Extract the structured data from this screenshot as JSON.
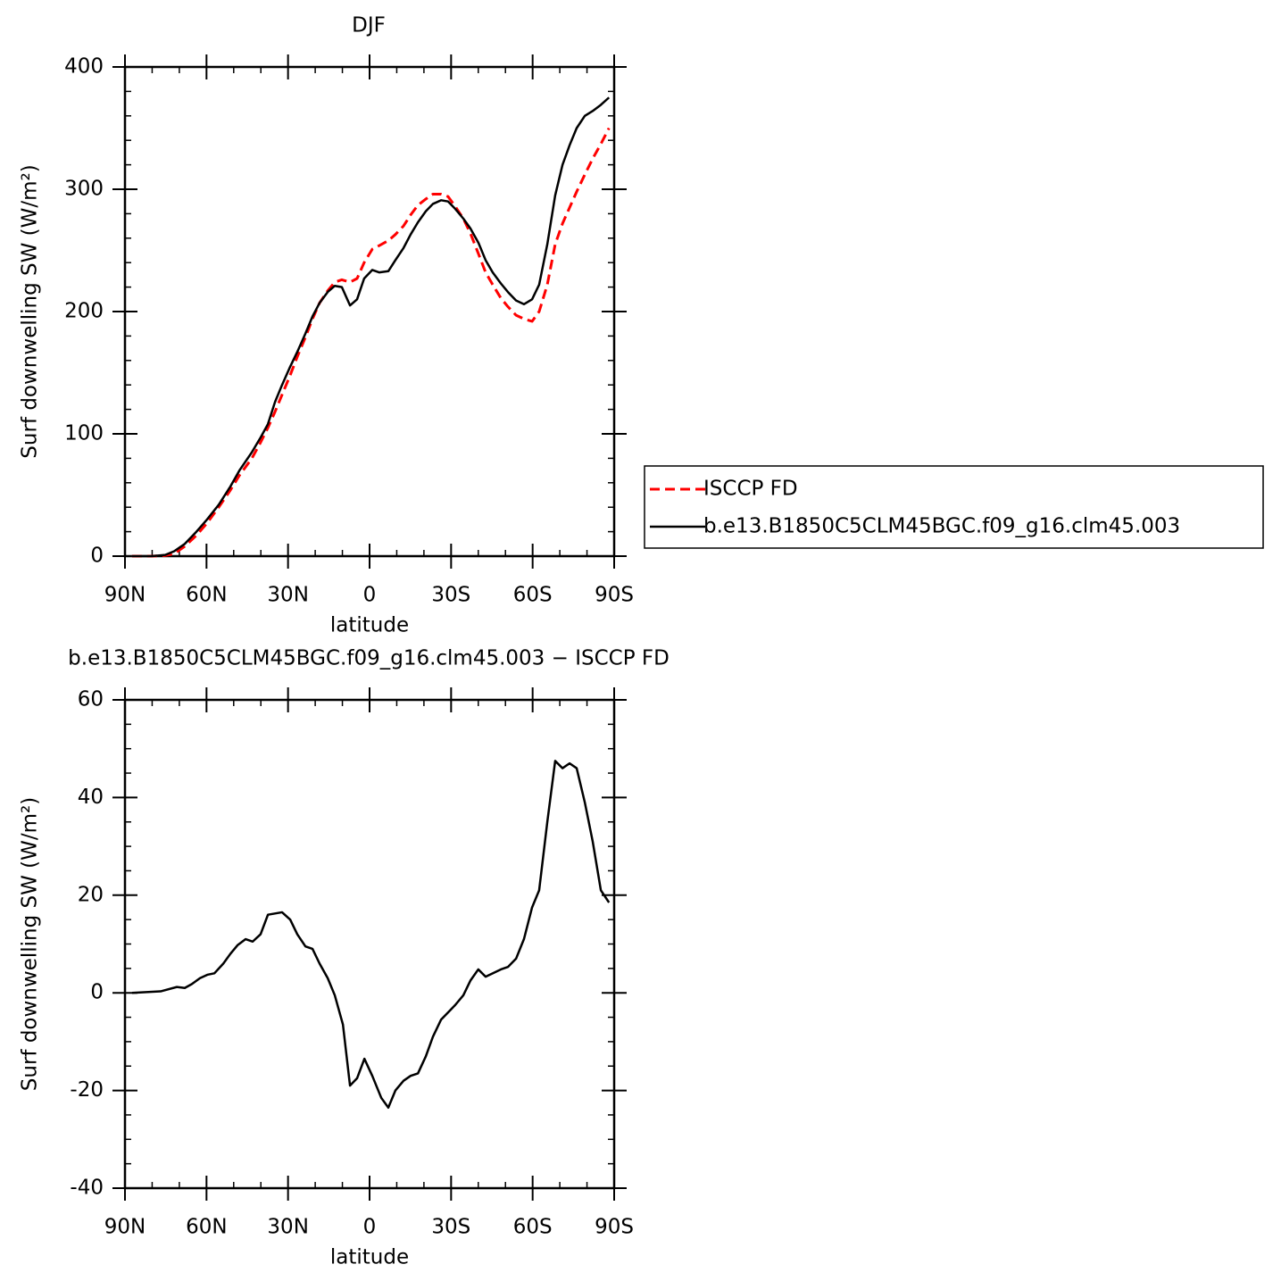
{
  "chart_data": [
    {
      "type": "line",
      "title": "DJF",
      "xlabel": "latitude",
      "ylabel": "Surf downwelling SW (W/m²)",
      "x": [
        -87.4,
        -80.1,
        -75.2,
        -71.9,
        -68,
        -63.7,
        -59.8,
        -55.5,
        -51.2,
        -47.9,
        -43.3,
        -40.1,
        -37.4,
        -34.8,
        -32.2,
        -29.2,
        -26.6,
        -23.6,
        -21,
        -18.4,
        -15.4,
        -12.8,
        -10.2,
        -7.2,
        -4.6,
        -2,
        1,
        3.6,
        6.9,
        9.5,
        12.5,
        15.1,
        17.8,
        20.7,
        23.3,
        26.3,
        28.9,
        31.5,
        34.5,
        37.1,
        40.1,
        42.7,
        45.3,
        48.3,
        50.9,
        53.9,
        56.8,
        59.8,
        62.4,
        65.4,
        68.3,
        71,
        73.6,
        76.2,
        79.2,
        82.1,
        85.1,
        88.1
      ],
      "series": [
        {
          "name": "ISCCP FD",
          "color": "#ff0000",
          "dash": true,
          "values": [
            0,
            0,
            0.5,
            2,
            8,
            17,
            27,
            40,
            54,
            66,
            80,
            93,
            105,
            118,
            132,
            148,
            163,
            179,
            194,
            207,
            217,
            224,
            226,
            224,
            227,
            240,
            251,
            254,
            258,
            263,
            270,
            279,
            287,
            292,
            296,
            296,
            294,
            286,
            276,
            264,
            247,
            232,
            222,
            211,
            204,
            197,
            194,
            192,
            200,
            222,
            255,
            272,
            285,
            298,
            312,
            325,
            337,
            350
          ]
        },
        {
          "name": "b.e13.B1850C5CLM45BGC.f09_g16.clm45.003",
          "color": "#000000",
          "dash": false,
          "values": [
            0,
            0,
            1,
            4,
            10,
            20,
            30,
            42,
            57,
            70,
            85,
            97,
            108,
            126,
            140,
            155,
            167,
            182,
            196,
            207,
            216,
            221,
            220,
            205,
            210,
            227,
            234,
            232,
            233,
            242,
            252,
            263,
            273,
            282,
            288,
            291,
            290,
            284,
            276,
            268,
            256,
            242,
            232,
            223,
            216,
            209,
            206,
            210,
            222,
            255,
            295,
            320,
            336,
            350,
            360,
            364,
            369,
            375
          ]
        }
      ],
      "xlim": [
        -90,
        90
      ],
      "xticks": [
        {
          "value": -90,
          "label": "90N"
        },
        {
          "value": -60,
          "label": "60N"
        },
        {
          "value": -30,
          "label": "30N"
        },
        0,
        {
          "value": 30,
          "label": "30S"
        },
        {
          "value": 60,
          "label": "60S"
        },
        {
          "value": 90,
          "label": "90S"
        }
      ],
      "ylim": [
        0,
        400
      ],
      "yticks": [
        0,
        100,
        200,
        300,
        400
      ],
      "legend": "right"
    },
    {
      "type": "line",
      "title": "b.e13.B1850C5CLM45BGC.f09_g16.clm45.003 − ISCCP FD",
      "xlabel": "latitude",
      "ylabel": "Surf downwelling SW (W/m²)",
      "x": [
        -87.4,
        -76.9,
        -70.9,
        -68,
        -65.4,
        -62.4,
        -59.7,
        -57.1,
        -53.8,
        -51.2,
        -48.5,
        -45.6,
        -43,
        -40.1,
        -37.4,
        -32.2,
        -29.2,
        -26.6,
        -23.6,
        -21,
        -18.4,
        -15.4,
        -12.8,
        -9.8,
        -7.2,
        -4.6,
        -1.9,
        1,
        4.3,
        6.9,
        9.5,
        12.5,
        15.1,
        17.8,
        20.7,
        23.3,
        26.3,
        28.9,
        31.5,
        34.5,
        37.1,
        40,
        42.7,
        45.3,
        48.3,
        50.9,
        53.9,
        56.8,
        59.8,
        62.4,
        65.4,
        68.3,
        71,
        73.6,
        76.2,
        79.2,
        82.1,
        85.1,
        88.1
      ],
      "values": [
        0,
        0.3,
        1.2,
        1,
        1.8,
        3,
        3.7,
        4,
        6,
        8,
        9.8,
        11,
        10.5,
        12,
        16,
        16.5,
        15,
        12,
        9.5,
        9,
        6,
        3,
        -0.5,
        -6.5,
        -19,
        -17.5,
        -13.5,
        -17,
        -21.5,
        -23.5,
        -20,
        -18,
        -17,
        -16.5,
        -13,
        -9,
        -5.5,
        -4,
        -2.5,
        -0.5,
        2.5,
        4.8,
        3.3,
        4,
        4.8,
        5.3,
        7,
        11,
        17.5,
        21,
        35,
        47.5,
        46,
        47,
        46,
        39,
        31,
        21,
        18.5
      ],
      "color": "#000000",
      "xlim": [
        -90,
        90
      ],
      "xticks": [
        {
          "value": -90,
          "label": "90N"
        },
        {
          "value": -60,
          "label": "60N"
        },
        {
          "value": -30,
          "label": "30N"
        },
        0,
        {
          "value": 30,
          "label": "30S"
        },
        {
          "value": 60,
          "label": "60S"
        },
        {
          "value": 90,
          "label": "90S"
        }
      ],
      "ylim": [
        -40,
        60
      ],
      "yticks": [
        -40,
        -20,
        0,
        20,
        40,
        60
      ]
    }
  ]
}
